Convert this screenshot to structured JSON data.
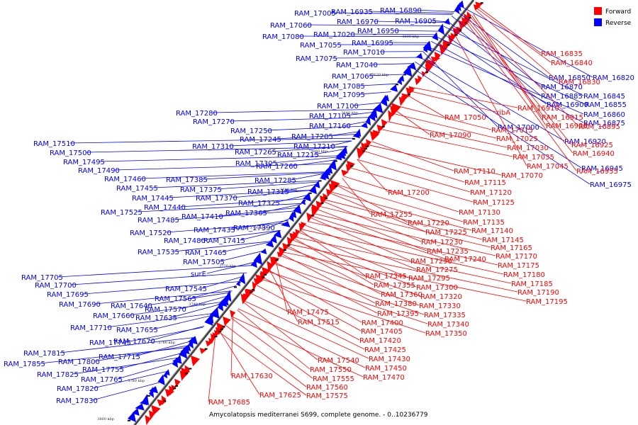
{
  "caption": "Amycolatopsis mediterranei S699, complete genome. - 0..10236779",
  "legend": {
    "forward": {
      "label": "Forward",
      "color": "#ff0000"
    },
    "reverse": {
      "label": "Reverse",
      "color": "#0000ff"
    }
  },
  "axis_ticks": [
    "3600 kbp",
    "3620 kbp",
    "3640 kbp",
    "3660 kbp",
    "3680 kbp",
    "3700 kbp",
    "3720 kbp",
    "3740 kbp",
    "3760 kbp",
    "3780 kbp",
    "3800 kbp"
  ],
  "reverse_labels": [
    "RAM_16890",
    "RAM_16935",
    "RAM_17005",
    "RAM_16905",
    "RAM_16970",
    "RAM_17060",
    "RAM_16950",
    "RAM_17020",
    "RAM_17080",
    "RAM_16995",
    "RAM_17055",
    "RAM_17010",
    "RAM_17075",
    "RAM_17040",
    "RAM_17065",
    "RAM_17085",
    "RAM_17095",
    "RAM_17100",
    "RAM_17105",
    "RAM_17160",
    "RAM_17280",
    "RAM_17270",
    "RAM_17205",
    "RAM_17250",
    "RAM_17245",
    "RAM_17210",
    "RAM_17310",
    "RAM_17265",
    "RAM_17215",
    "RAM_17510",
    "RAM_17500",
    "RAM_17305",
    "RAM_17260",
    "RAM_17495",
    "RAM_17490",
    "RAM_17285",
    "RAM_17460",
    "RAM_17385",
    "RAM_17455",
    "RAM_17375",
    "RAM_17315",
    "RAM_17445",
    "RAM_17370",
    "RAM_17325",
    "RAM_17440",
    "RAM_17525",
    "RAM_17365",
    "RAM_17410",
    "RAM_17485",
    "RAM_17435",
    "RAM_17390",
    "RAM_17520",
    "RAM_17480",
    "RAM_17415",
    "RAM_17535",
    "RAM_17465",
    "RAM_17505",
    "surE",
    "RAM_17705",
    "RAM_17700",
    "RAM_17545",
    "RAM_17695",
    "RAM_17565",
    "RAM_17690",
    "RAM_17640",
    "RAM_17570",
    "RAM_17660",
    "RAM_17635",
    "RAM_17710",
    "RAM_17655",
    "RAM_17745",
    "RAM_17670",
    "RAM_17815",
    "RAM_17715",
    "RAM_17800",
    "RAM_17855",
    "RAM_17755",
    "RAM_17825",
    "RAM_17765",
    "RAM_17820",
    "RAM_17830",
    "RAM_16820",
    "RAM_16850",
    "RAM_16870",
    "RAM_16885",
    "RAM_16845",
    "RAM_16900",
    "RAM_16855",
    "RAM_16875",
    "RAM_16860",
    "RAM_17000",
    "RAM_16920",
    "RAM_16945",
    "RAM_16975"
  ],
  "forward_labels": [
    "RAM_16835",
    "RAM_16840",
    "RAM_16830",
    "RAM_16910",
    "RAM_16915",
    "RAM_16930",
    "RAM_16895",
    "RAM_16925",
    "RAM_16940",
    "RAM_16955",
    "RAM_17050",
    "ribA",
    "RAM_17015",
    "RAM_17090",
    "RAM_17025",
    "RAM_17030",
    "RAM_17035",
    "RAM_17045",
    "RAM_17070",
    "RAM_17110",
    "RAM_17115",
    "RAM_17120",
    "RAM_17200",
    "RAM_17125",
    "RAM_17130",
    "RAM_17255",
    "RAM_17135",
    "RAM_17220",
    "RAM_17140",
    "RAM_17225",
    "RAM_17145",
    "RAM_17230",
    "RAM_17165",
    "RAM_17235",
    "RAM_17170",
    "RAM_17290",
    "RAM_17240",
    "RAM_17275",
    "RAM_17175",
    "RAM_17345",
    "RAM_17295",
    "RAM_17180",
    "RAM_17355",
    "RAM_17185",
    "RAM_17300",
    "RAM_17360",
    "RAM_17190",
    "RAM_17320",
    "RAM_17195",
    "RAM_17380",
    "RAM_17330",
    "RAM_17475",
    "RAM_17395",
    "RAM_17335",
    "RAM_17400",
    "RAM_17340",
    "RAM_17515",
    "RAM_17405",
    "RAM_17350",
    "RAM_17420",
    "RAM_17425",
    "RAM_17430",
    "RAM_17540",
    "RAM_17450",
    "RAM_17550",
    "RAM_17470",
    "RAM_17630",
    "RAM_17555",
    "RAM_17560",
    "RAM_17625",
    "RAM_17575",
    "RAM_17685"
  ]
}
